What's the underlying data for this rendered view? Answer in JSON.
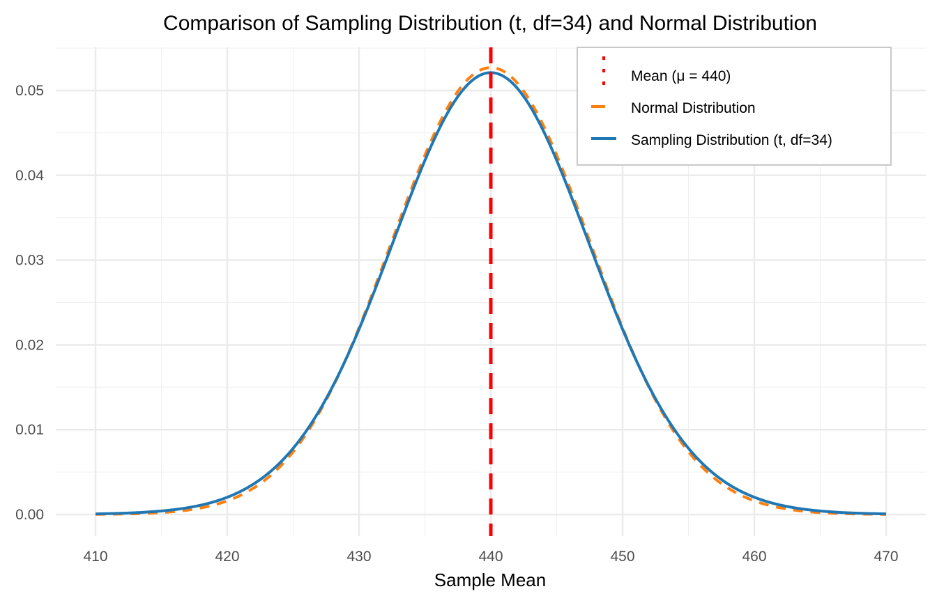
{
  "chart_data": {
    "type": "line",
    "title": "Comparison of Sampling Distribution (t, df=34) and Normal Distribution",
    "xlabel": "Sample Mean",
    "ylabel": "",
    "xlim": [
      410,
      470
    ],
    "ylim": [
      0,
      0.0545
    ],
    "x_ticks": [
      410,
      420,
      430,
      440,
      450,
      460,
      470
    ],
    "x_tick_labels": [
      "410",
      "420",
      "430",
      "440",
      "450",
      "460",
      "470"
    ],
    "y_ticks": [
      0,
      0.01,
      0.02,
      0.03,
      0.04,
      0.05
    ],
    "y_tick_labels": [
      "0.00",
      "0.01",
      "0.02",
      "0.03",
      "0.04",
      "0.05"
    ],
    "grid": true,
    "legend_position": "top-right",
    "mean": 440,
    "series": [
      {
        "name": "Sampling Distribution (t, df=34)",
        "color": "#1f77b4",
        "style": "solid",
        "distribution": "t",
        "df": 34,
        "center": 440,
        "scale": 7.6,
        "peak": 0.0521
      },
      {
        "name": "Normal Distribution",
        "color": "#ff7f0e",
        "style": "dashed",
        "distribution": "normal",
        "center": 440,
        "sd": 7.57,
        "peak": 0.0527
      }
    ],
    "vline": {
      "name": "Mean (μ = 440)",
      "x": 440,
      "color": "#ff0000",
      "style": "dashed"
    },
    "legend": [
      {
        "label": "Mean (μ = 440)",
        "color": "#ff0000",
        "key": "vline"
      },
      {
        "label": "Normal Distribution",
        "color": "#ff7f0e",
        "key": "dashed"
      },
      {
        "label": "Sampling Distribution (t, df=34)",
        "color": "#1f77b4",
        "key": "solid"
      }
    ]
  }
}
